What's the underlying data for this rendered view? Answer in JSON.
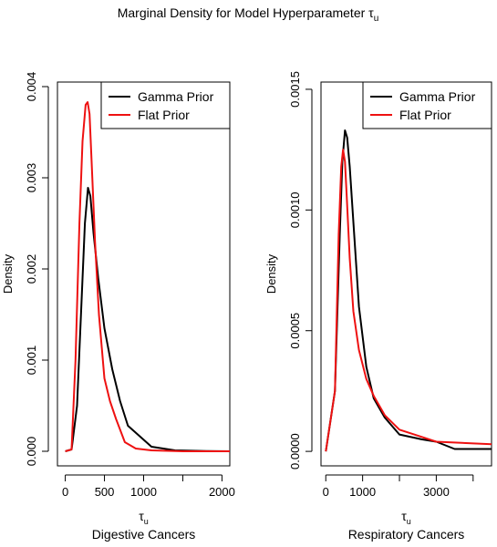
{
  "title": "Marginal Density for Model Hyperparameter τ",
  "title_sub": "u",
  "chart_data": [
    {
      "type": "line",
      "title": "",
      "ylabel": "Density",
      "xlabel_main": "τ",
      "xlabel_sub": "u",
      "caption": "Digestive Cancers",
      "xlim": [
        -100,
        2100
      ],
      "ylim": [
        -0.00016,
        0.00405
      ],
      "xticks": [
        0,
        500,
        1000,
        1500,
        2000
      ],
      "xtick_labels": [
        "0",
        "500",
        "1000",
        "",
        "2000"
      ],
      "yticks": [
        0,
        0.001,
        0.002,
        0.003,
        0.004
      ],
      "ytick_labels": [
        "0.000",
        "0.001",
        "0.002",
        "0.003",
        "0.004"
      ],
      "legend": {
        "position": "top-right",
        "entries": [
          "Gamma Prior",
          "Flat Prior"
        ]
      },
      "series": [
        {
          "name": "Gamma Prior",
          "color": "#000000",
          "x": [
            0,
            80,
            150,
            200,
            250,
            290,
            320,
            360,
            420,
            500,
            600,
            700,
            800,
            1100,
            1400,
            1800,
            2100
          ],
          "y": [
            0,
            2e-05,
            0.0005,
            0.0015,
            0.0025,
            0.00289,
            0.0028,
            0.0024,
            0.0019,
            0.00135,
            0.0009,
            0.00055,
            0.00028,
            5e-05,
            1e-05,
            3e-06,
            0
          ]
        },
        {
          "name": "Flat Prior",
          "color": "#ee1111",
          "x": [
            0,
            80,
            130,
            180,
            220,
            260,
            285,
            310,
            340,
            380,
            430,
            500,
            570,
            650,
            760,
            900,
            1100,
            1500,
            2100
          ],
          "y": [
            0,
            2e-05,
            0.001,
            0.0025,
            0.0034,
            0.0038,
            0.00383,
            0.0037,
            0.0031,
            0.0023,
            0.0015,
            0.0008,
            0.00055,
            0.00035,
            0.0001,
            3e-05,
            1e-05,
            0,
            0
          ]
        }
      ]
    },
    {
      "type": "line",
      "title": "",
      "ylabel": "Density",
      "xlabel_main": "τ",
      "xlabel_sub": "u",
      "caption": "Respiratory Cancers",
      "xlim": [
        -130,
        4500
      ],
      "ylim": [
        -6e-05,
        0.00153
      ],
      "xticks": [
        0,
        1000,
        2000,
        3000,
        4000
      ],
      "xtick_labels": [
        "0",
        "1000",
        "",
        "3000",
        ""
      ],
      "yticks": [
        0,
        0.0005,
        0.001,
        0.0015
      ],
      "ytick_labels": [
        "0.0000",
        "0.0005",
        "0.0010",
        "0.0015"
      ],
      "legend": {
        "position": "top-right",
        "entries": [
          "Gamma Prior",
          "Flat Prior"
        ]
      },
      "series": [
        {
          "name": "Gamma Prior",
          "color": "#000000",
          "x": [
            0,
            250,
            380,
            450,
            520,
            580,
            650,
            750,
            900,
            1100,
            1300,
            1600,
            2000,
            2600,
            3000,
            3500,
            4500
          ],
          "y": [
            0,
            0.00025,
            0.0009,
            0.0012,
            0.00133,
            0.0013,
            0.00118,
            0.00095,
            0.0006,
            0.00035,
            0.00022,
            0.00014,
            7e-05,
            5e-05,
            4e-05,
            1e-05,
            1e-05
          ]
        },
        {
          "name": "Flat Prior",
          "color": "#ee1111",
          "x": [
            0,
            250,
            350,
            420,
            470,
            520,
            570,
            650,
            750,
            900,
            1100,
            1300,
            1600,
            2000,
            2600,
            3000,
            4500
          ],
          "y": [
            0,
            0.00025,
            0.0009,
            0.00118,
            0.00125,
            0.0012,
            0.00105,
            0.0008,
            0.00058,
            0.00042,
            0.0003,
            0.00023,
            0.00015,
            9e-05,
            6e-05,
            4e-05,
            3e-05
          ]
        }
      ]
    }
  ]
}
